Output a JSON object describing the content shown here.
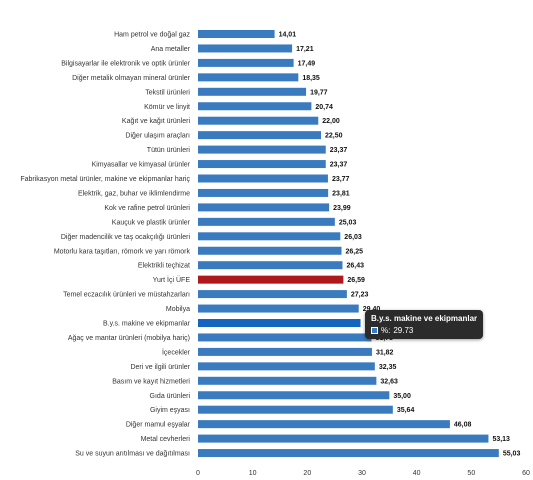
{
  "chart_data": {
    "type": "bar",
    "orientation": "horizontal",
    "categories": [
      "Ham petrol ve doğal gaz",
      "Ana metaller",
      "Bilgisayarlar ile elektronik ve optik ürünler",
      "Diğer metalik olmayan mineral ürünler",
      "Tekstil ürünleri",
      "Kömür ve linyit",
      "Kağıt ve kağıt ürünleri",
      "Diğer ulaşım araçları",
      "Tütün ürünleri",
      "Kimyasallar ve kimyasal ürünler",
      "Fabrikasyon metal ürünler, makine ve ekipmanlar hariç",
      "Elektrik, gaz, buhar ve iklimlendirme",
      "Kok ve rafine petrol ürünleri",
      "Kauçuk ve plastik ürünler",
      "Diğer madencilik ve taş ocakçılığı ürünleri",
      "Motorlu kara taşıtları, römork ve yarı römork",
      "Elektrikli teçhizat",
      "Yurt İçi ÜFE",
      "Temel eczacılık ürünleri ve müstahzarları",
      "Mobilya",
      "B.y.s. makine ve ekipmanlar",
      "Ağaç ve mantar ürünleri (mobilya hariç)",
      "İçecekler",
      "Deri ve ilgili ürünler",
      "Basım ve kayıt hizmetleri",
      "Gıda ürünleri",
      "Giyim eşyası",
      "Diğer mamul eşyalar",
      "Metal cevherleri",
      "Su ve suyun arıtılması ve dağıtılması"
    ],
    "values": [
      14.01,
      17.21,
      17.49,
      18.35,
      19.77,
      20.74,
      22.0,
      22.5,
      23.37,
      23.37,
      23.77,
      23.81,
      23.99,
      25.03,
      26.03,
      26.25,
      26.43,
      26.59,
      27.23,
      29.4,
      29.73,
      31.73,
      31.82,
      32.35,
      32.63,
      35.0,
      35.64,
      46.08,
      53.13,
      55.03
    ],
    "value_labels": [
      "14,01",
      "17,21",
      "17,49",
      "18,35",
      "19,77",
      "20,74",
      "22,00",
      "22,50",
      "23,37",
      "23,37",
      "23,77",
      "23,81",
      "23,99",
      "25,03",
      "26,03",
      "26,25",
      "26,43",
      "26,59",
      "27,23",
      "29,40",
      "",
      "31,73",
      "31,82",
      "32,35",
      "32,63",
      "35,00",
      "35,64",
      "46,08",
      "53,13",
      "55,03"
    ],
    "highlight_index": 17,
    "hover_index": 20,
    "xlim": [
      0,
      60
    ],
    "xticks": [
      "0",
      "10",
      "20",
      "30",
      "40",
      "50",
      "60"
    ],
    "grid": false,
    "colors": {
      "bar": "#3a7bbf",
      "highlight": "#b0191c",
      "hover": "#1565c0"
    }
  },
  "tooltip": {
    "title": "B.y.s. makine ve ekipmanlar",
    "series_prefix": "%:",
    "value_text": "29.73"
  }
}
